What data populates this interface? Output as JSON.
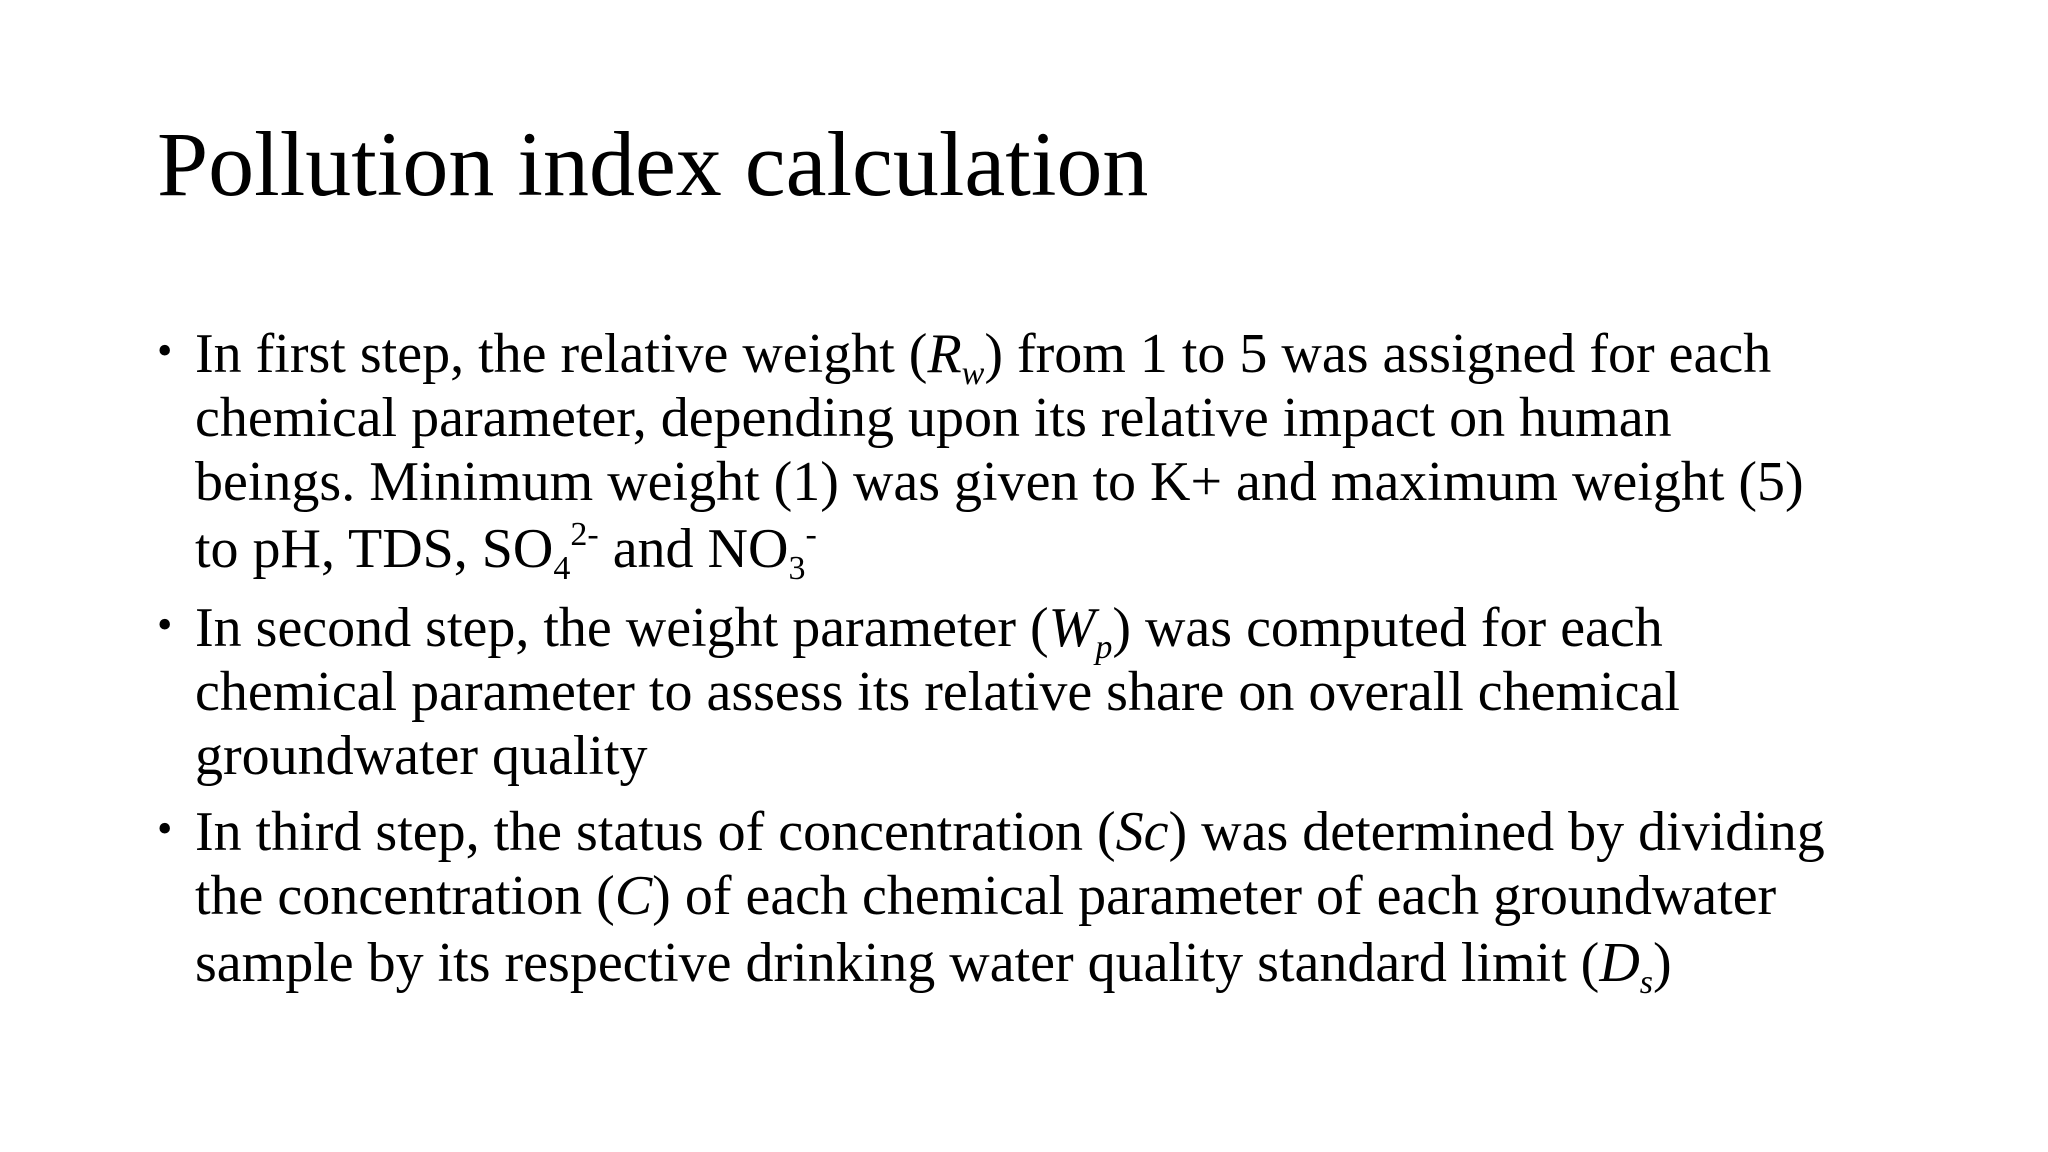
{
  "slide": {
    "title": "Pollution index calculation",
    "bullets": [
      {
        "lines": [
          {
            "pre": "In first step, the relative weight (",
            "var": "R",
            "sub": "w",
            "post": ") from 1 to 5 was assigned for each"
          },
          {
            "text": "chemical parameter, depending upon its relative impact on human"
          },
          {
            "text": "beings. Minimum weight (1) was given to K+ and maximum weight (5)"
          },
          {
            "a": "to pH, TDS, SO",
            "a_sub": "4",
            "a_sup": "2-",
            "b": " and NO",
            "b_sub": "3",
            "b_sup": "-"
          }
        ]
      },
      {
        "lines": [
          {
            "pre": "In second step, the weight parameter (",
            "var": "W",
            "sub": "p",
            "post": ") was computed for each"
          },
          {
            "text": "chemical parameter to assess its relative share on overall chemical"
          },
          {
            "text": "groundwater quality"
          }
        ]
      },
      {
        "lines": [
          {
            "pre": "In third step, the status of concentration (",
            "var": "Sc",
            "post": ") was determined by dividing"
          },
          {
            "pre": "the concentration (",
            "var": "C",
            "post": ") of each chemical parameter of each groundwater"
          },
          {
            "pre": "sample by its respective drinking water quality standard limit (",
            "var": "D",
            "sub": "s",
            "post": ")"
          }
        ]
      }
    ],
    "bullet_glyph": "•"
  }
}
